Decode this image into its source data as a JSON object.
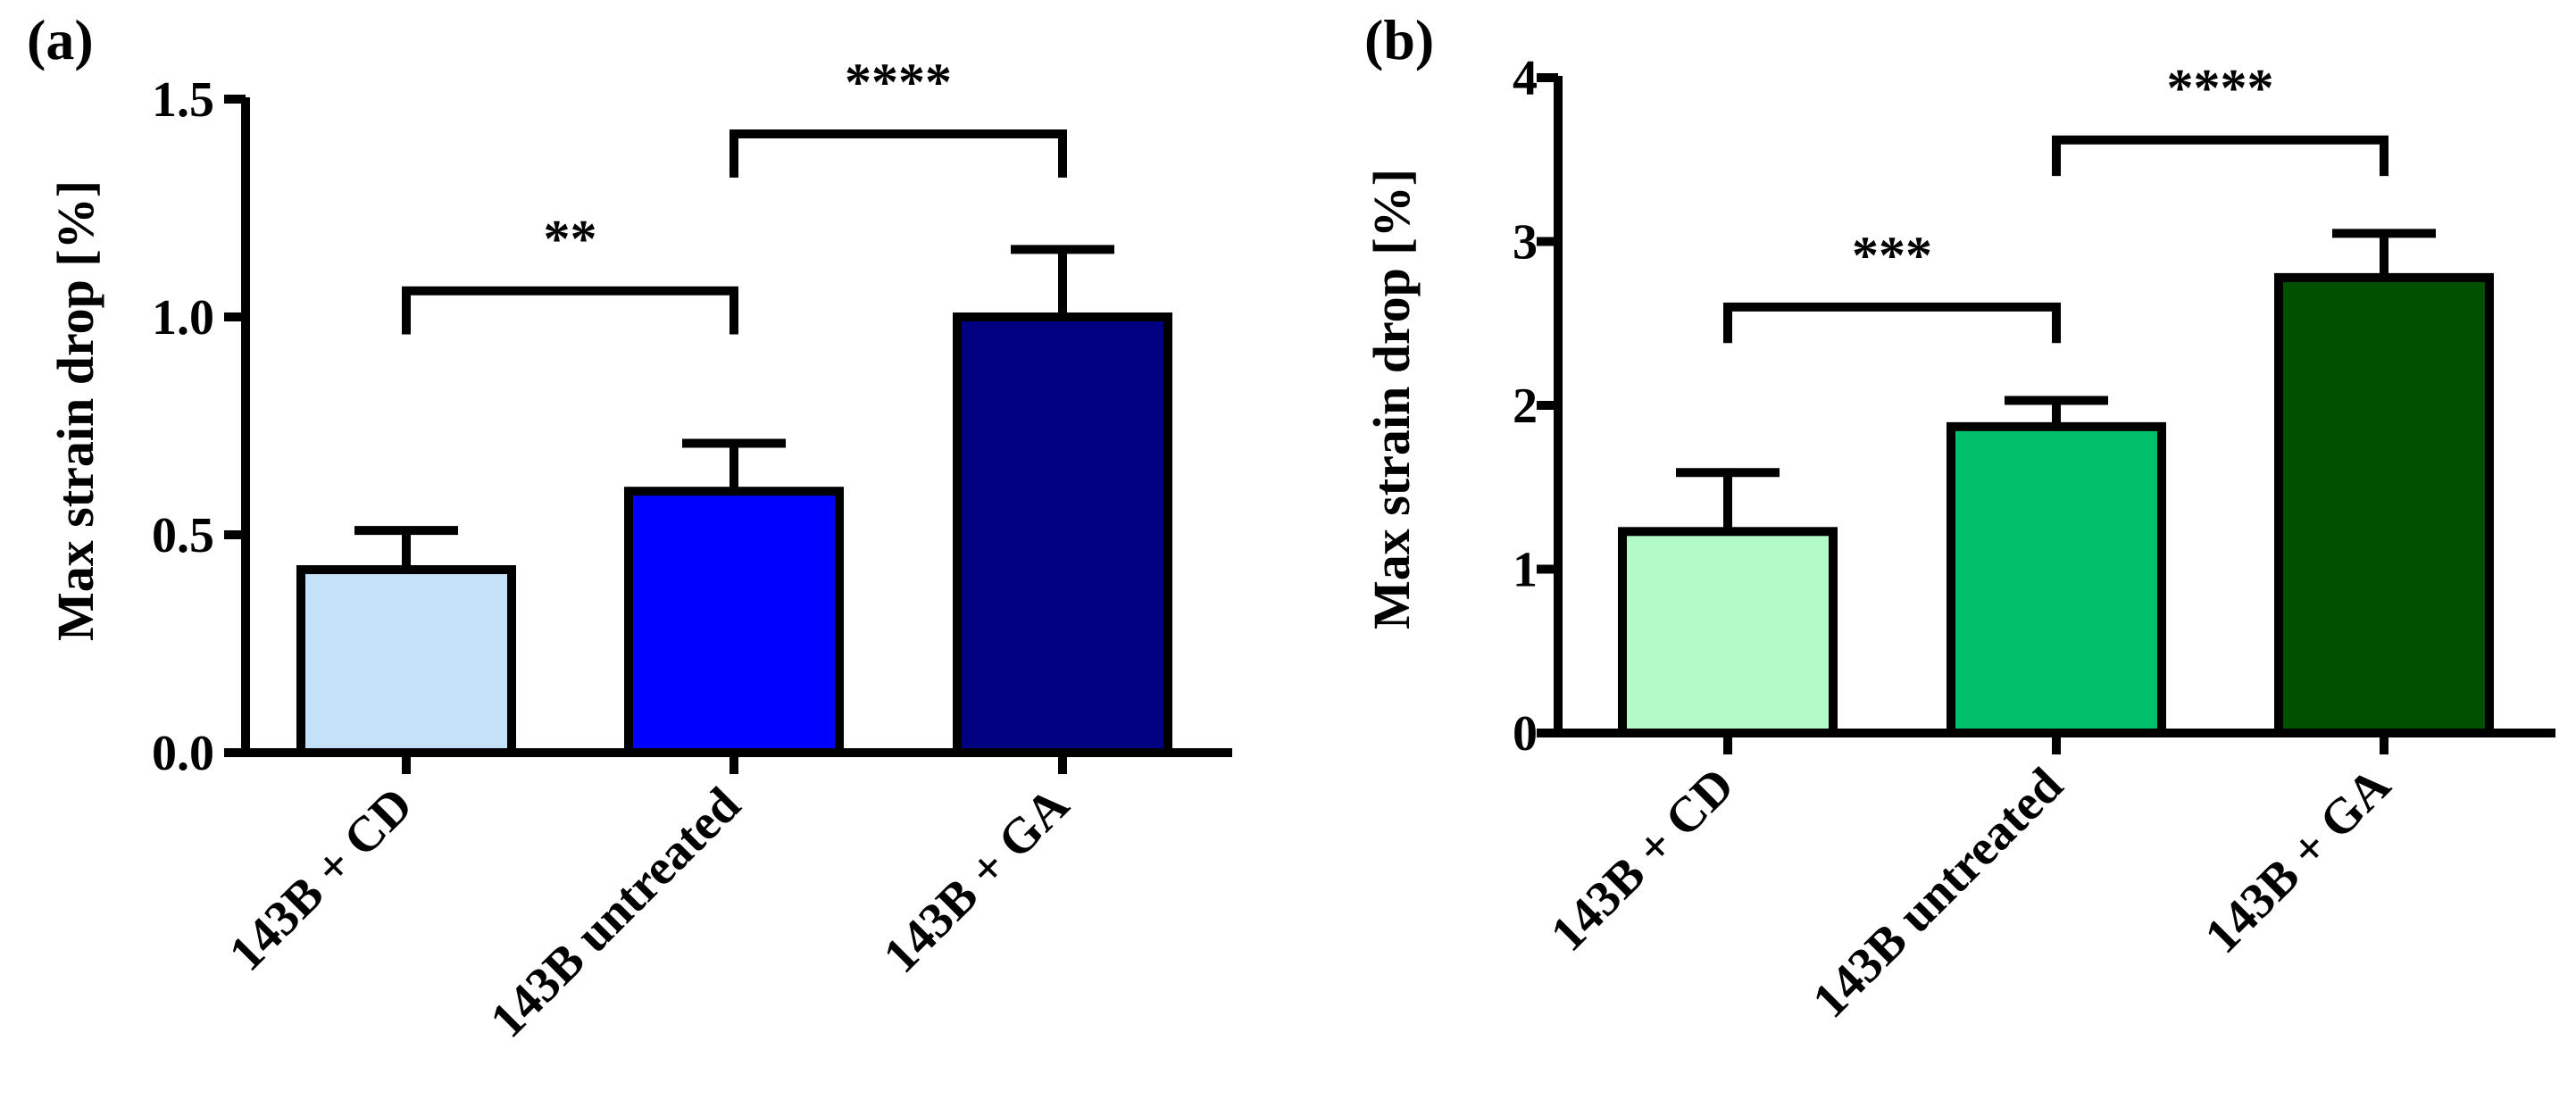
{
  "chart_data": [
    {
      "panel_label": "(a)",
      "type": "bar",
      "categories": [
        "143B + CD",
        "143B untreated",
        "143B + GA"
      ],
      "values": [
        0.42,
        0.6,
        1.0
      ],
      "errors": [
        0.09,
        0.11,
        0.155
      ],
      "colors": [
        "#C5E1F8",
        "#0000FF",
        "#000080"
      ],
      "ylabel": "Max strain drop [%]",
      "xlabel": "",
      "ylim": [
        0,
        1.5
      ],
      "yticks": [
        0,
        0.5,
        1.0,
        1.5
      ],
      "ytick_labels": [
        "0.0",
        "0.5",
        "1.0",
        "1.5"
      ],
      "grid": false,
      "significance": [
        {
          "from": 0,
          "to": 1,
          "label": "**",
          "level": 1.06,
          "drop": 0.1
        },
        {
          "from": 1,
          "to": 2,
          "label": "****",
          "level": 1.42,
          "drop": 0.1
        }
      ]
    },
    {
      "panel_label": "(b)",
      "type": "bar",
      "categories": [
        "143B + CD",
        "143B untreated",
        "143B + GA"
      ],
      "values": [
        1.23,
        1.87,
        2.78
      ],
      "errors": [
        0.36,
        0.16,
        0.27
      ],
      "colors": [
        "#B2FAC8",
        "#00C06C",
        "#005000"
      ],
      "ylabel": "Max strain drop [%]",
      "xlabel": "",
      "ylim": [
        0,
        4
      ],
      "yticks": [
        0,
        1,
        2,
        3,
        4
      ],
      "ytick_labels": [
        "0",
        "1",
        "2",
        "3",
        "4"
      ],
      "grid": false,
      "significance": [
        {
          "from": 0,
          "to": 1,
          "label": "***",
          "level": 2.6,
          "drop": 0.22
        },
        {
          "from": 1,
          "to": 2,
          "label": "****",
          "level": 3.62,
          "drop": 0.22
        }
      ]
    }
  ]
}
